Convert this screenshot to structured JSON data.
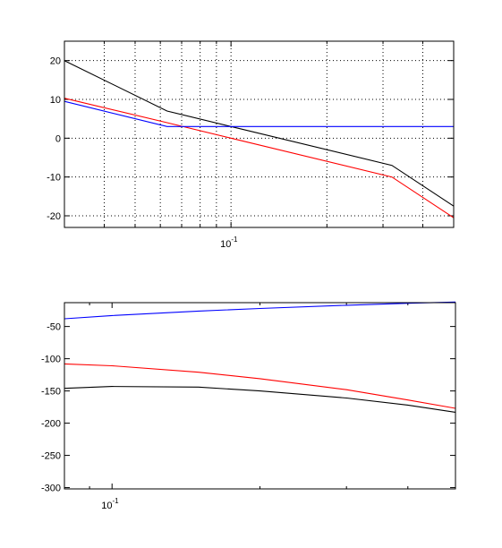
{
  "chart_data": [
    {
      "type": "line",
      "title": "",
      "xlabel": "",
      "ylabel": "",
      "xscale": "log",
      "xlim": [
        0.03,
        0.5
      ],
      "ylim": [
        -23,
        25
      ],
      "grid": true,
      "x_ticks": [
        {
          "value": 0.1,
          "label": "10",
          "exp": "-1"
        }
      ],
      "y_ticks": [
        -20,
        -10,
        0,
        10,
        20
      ],
      "series": [
        {
          "color": "#000000",
          "x": [
            0.03,
            0.063,
            0.1,
            0.32,
            0.5
          ],
          "y": [
            20,
            7,
            3,
            -7,
            -17.5
          ]
        },
        {
          "color": "#ff0000",
          "x": [
            0.03,
            0.063,
            0.1,
            0.32,
            0.5
          ],
          "y": [
            10.3,
            4,
            0,
            -10,
            -20.5
          ]
        },
        {
          "color": "#0000ff",
          "x": [
            0.03,
            0.063,
            0.5
          ],
          "y": [
            9.5,
            3,
            3
          ]
        }
      ]
    },
    {
      "type": "line",
      "title": "",
      "xlabel": "",
      "ylabel": "",
      "xscale": "log",
      "xlim": [
        0.08,
        0.5
      ],
      "ylim": [
        -302,
        -13
      ],
      "grid": false,
      "x_ticks": [
        {
          "value": 0.1,
          "label": "10",
          "exp": "-1"
        }
      ],
      "y_ticks": [
        -50,
        -100,
        -150,
        -200,
        -250,
        -300
      ],
      "series": [
        {
          "color": "#0000ff",
          "x": [
            0.08,
            0.1,
            0.15,
            0.2,
            0.3,
            0.4,
            0.5
          ],
          "y": [
            -38,
            -33,
            -26,
            -22,
            -17,
            -14,
            -12
          ]
        },
        {
          "color": "#ff0000",
          "x": [
            0.08,
            0.1,
            0.15,
            0.2,
            0.3,
            0.4,
            0.5
          ],
          "y": [
            -108,
            -111,
            -121,
            -131,
            -148,
            -164,
            -177
          ]
        },
        {
          "color": "#000000",
          "x": [
            0.08,
            0.1,
            0.15,
            0.2,
            0.3,
            0.4,
            0.5
          ],
          "y": [
            -146,
            -143,
            -144,
            -150,
            -161,
            -172,
            -183
          ]
        }
      ]
    }
  ]
}
